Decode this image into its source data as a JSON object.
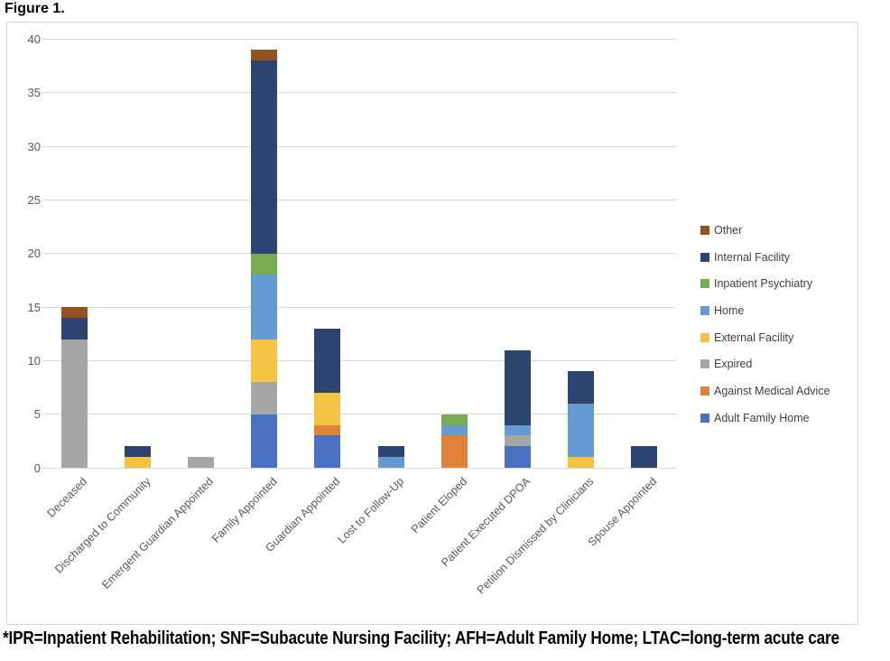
{
  "figure": {
    "title": "Figure 1.",
    "footnote": "*IPR=Inpatient Rehabilitation; SNF=Subacute Nursing Facility; AFH=Adult Family Home; LTAC=long-term acute care"
  },
  "chart_data": {
    "type": "bar",
    "stacked": true,
    "title": "Figure 1.",
    "xlabel": "",
    "ylabel": "",
    "ylim": [
      0,
      40
    ],
    "yticks": [
      0,
      5,
      10,
      15,
      20,
      25,
      30,
      35,
      40
    ],
    "grid": true,
    "gridline_color": "#d9d9d9",
    "axis_label_color": "#595959",
    "legend_position": "right",
    "legend_order_top_to_bottom": [
      "Other",
      "Internal Facility",
      "Inpatient Psychiatry",
      "Home",
      "External Facility",
      "Expired",
      "Against Medical Advice",
      "Adult Family Home"
    ],
    "categories": [
      "Deceased",
      "Discharged to Community",
      "Emergent Guardian Appointed",
      "Family Appointed",
      "Guardian Appointed",
      "Lost to Follow-Up",
      "Patient Eloped",
      "Patient Executed DPOA",
      "Petition Dismissed by Clinicians",
      "Spouse Appointed"
    ],
    "series": [
      {
        "name": "Adult Family Home",
        "color": "#4b72c1",
        "values": [
          0,
          0,
          0,
          5,
          3,
          0,
          0,
          2,
          0,
          0
        ]
      },
      {
        "name": "Against Medical Advice",
        "color": "#e0813c",
        "values": [
          0,
          0,
          0,
          0,
          1,
          0,
          3,
          0,
          0,
          0
        ]
      },
      {
        "name": "Expired",
        "color": "#a6a6a6",
        "values": [
          12,
          0,
          1,
          3,
          0,
          0,
          0,
          1,
          0,
          0
        ]
      },
      {
        "name": "External Facility",
        "color": "#f4c344",
        "values": [
          0,
          1,
          0,
          4,
          3,
          0,
          0,
          0,
          1,
          0
        ]
      },
      {
        "name": "Home",
        "color": "#6499d2",
        "values": [
          0,
          0,
          0,
          6,
          0,
          1,
          1,
          1,
          5,
          0
        ]
      },
      {
        "name": "Inpatient Psychiatry",
        "color": "#79ab52",
        "values": [
          0,
          0,
          0,
          2,
          0,
          0,
          1,
          0,
          0,
          0
        ]
      },
      {
        "name": "Internal Facility",
        "color": "#2e4470",
        "values": [
          2,
          1,
          0,
          18,
          6,
          1,
          0,
          7,
          3,
          2
        ]
      },
      {
        "name": "Other",
        "color": "#95511f",
        "values": [
          1,
          0,
          0,
          1,
          0,
          0,
          0,
          0,
          0,
          0
        ]
      }
    ],
    "bar_totals": [
      15,
      2,
      1,
      39,
      13,
      2,
      5,
      11,
      9,
      2
    ]
  }
}
